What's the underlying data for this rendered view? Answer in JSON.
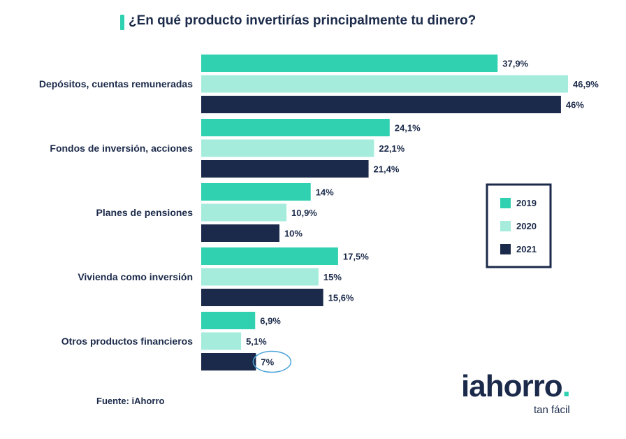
{
  "header": {
    "title": "¿En qué producto invertirías principalmente tu dinero?"
  },
  "footer": {
    "source": "Fuente: iAhorro",
    "logo_text": "iahorro",
    "logo_dot": ".",
    "tagline": "tan fácil"
  },
  "colors": {
    "s2019": "#2fd1b0",
    "s2020": "#a6ecdc",
    "s2021": "#1b2a4a",
    "highlight": "#4aa3d8"
  },
  "chart_data": {
    "type": "bar",
    "orientation": "horizontal",
    "title": "¿En qué producto invertirías principalmente tu dinero?",
    "categories": [
      "Depósitos, cuentas remuneradas",
      "Fondos de inversión, acciones",
      "Planes de pensiones",
      "Vivienda como inversión",
      "Otros productos financieros"
    ],
    "series": [
      {
        "name": "2019",
        "values": [
          37.9,
          24.1,
          14,
          17.5,
          6.9
        ],
        "labels": [
          "37,9%",
          "24,1%",
          "14%",
          "17,5%",
          "6,9%"
        ]
      },
      {
        "name": "2020",
        "values": [
          46.9,
          22.1,
          10.9,
          15,
          5.1
        ],
        "labels": [
          "46,9%",
          "22,1%",
          "10,9%",
          "15%",
          "5,1%"
        ]
      },
      {
        "name": "2021",
        "values": [
          46,
          21.4,
          10,
          15.6,
          7
        ],
        "labels": [
          "46%",
          "21,4%",
          "10%",
          "15,6%",
          "7%"
        ]
      }
    ],
    "xlim": [
      0,
      46.9
    ],
    "grid": false,
    "legend": "right",
    "annotations": [
      {
        "type": "circle",
        "category": "Otros productos financieros",
        "series": "2021"
      }
    ]
  }
}
